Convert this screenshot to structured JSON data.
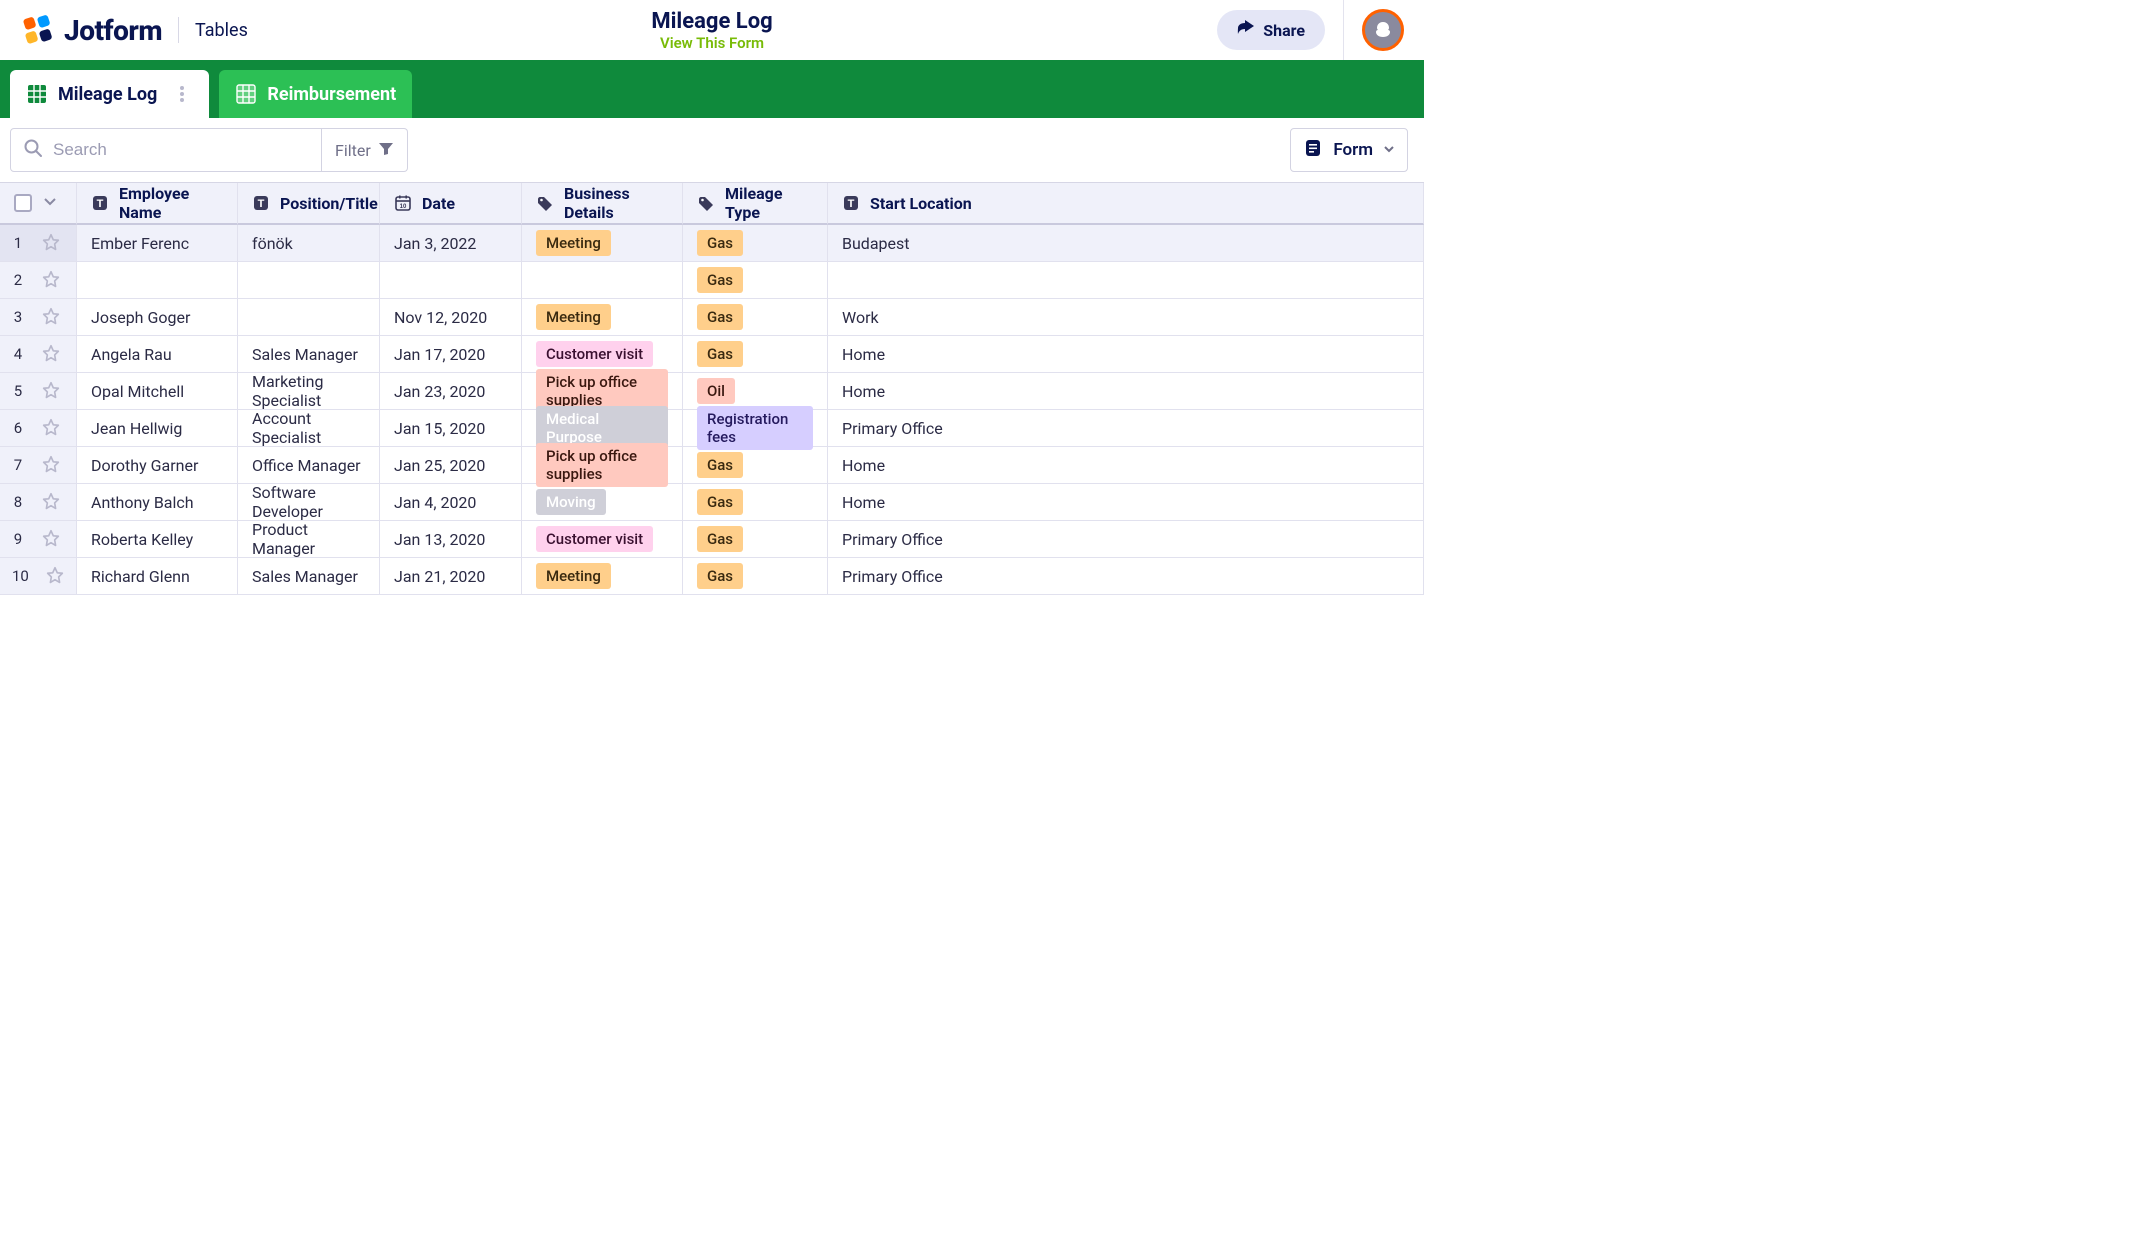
{
  "brand": {
    "name": "Jotform",
    "section": "Tables"
  },
  "title": {
    "main": "Mileage Log",
    "link": "View This Form"
  },
  "share": {
    "label": "Share"
  },
  "tabs": [
    {
      "label": "Mileage Log",
      "active": true
    },
    {
      "label": "Reimbursement",
      "active": false
    }
  ],
  "toolbar": {
    "search_placeholder": "Search",
    "filter_label": "Filter",
    "form_label": "Form"
  },
  "columns": [
    {
      "label": "Employee Name",
      "icon": "text"
    },
    {
      "label": "Position/Title",
      "icon": "text"
    },
    {
      "label": "Date",
      "icon": "date"
    },
    {
      "label": "Business Details",
      "icon": "tag"
    },
    {
      "label": "Mileage Type",
      "icon": "tag"
    },
    {
      "label": "Start Location",
      "icon": "text"
    }
  ],
  "tag_styles": {
    "Meeting": {
      "bg": "#ffcf8b",
      "fg": "#3a2a10"
    },
    "Gas": {
      "bg": "#ffcf8b",
      "fg": "#3a2a10"
    },
    "Customer visit": {
      "bg": "#ffd1ed",
      "fg": "#3a1030"
    },
    "Pick up office supplies": {
      "bg": "#ffc9bf",
      "fg": "#3a1810"
    },
    "Oil": {
      "bg": "#ffc9bf",
      "fg": "#3a1810"
    },
    "Medical Purpose": {
      "bg": "#cfcfd8",
      "fg": "#ffffff"
    },
    "Moving": {
      "bg": "#cfcfd8",
      "fg": "#ffffff"
    },
    "Registration fees": {
      "bg": "#d6ceff",
      "fg": "#251a5e"
    }
  },
  "rows": [
    {
      "n": "1",
      "selected": true,
      "employee": "Ember Ferenc",
      "position": "fönök",
      "date": "Jan 3, 2022",
      "business": "Meeting",
      "mileage": "Gas",
      "start": "Budapest"
    },
    {
      "n": "2",
      "selected": false,
      "employee": "",
      "position": "",
      "date": "",
      "business": "",
      "mileage": "Gas",
      "start": ""
    },
    {
      "n": "3",
      "selected": false,
      "employee": "Joseph Goger",
      "position": "",
      "date": "Nov 12, 2020",
      "business": "Meeting",
      "mileage": "Gas",
      "start": "Work"
    },
    {
      "n": "4",
      "selected": false,
      "employee": "Angela Rau",
      "position": "Sales Manager",
      "date": "Jan 17, 2020",
      "business": "Customer visit",
      "mileage": "Gas",
      "start": "Home"
    },
    {
      "n": "5",
      "selected": false,
      "employee": "Opal Mitchell",
      "position": "Marketing Specialist",
      "date": "Jan 23, 2020",
      "business": "Pick up office supplies",
      "mileage": "Oil",
      "start": "Home"
    },
    {
      "n": "6",
      "selected": false,
      "employee": "Jean Hellwig",
      "position": "Account Specialist",
      "date": "Jan 15, 2020",
      "business": "Medical Purpose",
      "mileage": "Registration fees",
      "start": "Primary Office"
    },
    {
      "n": "7",
      "selected": false,
      "employee": "Dorothy Garner",
      "position": "Office Manager",
      "date": "Jan 25, 2020",
      "business": "Pick up office supplies",
      "mileage": "Gas",
      "start": "Home"
    },
    {
      "n": "8",
      "selected": false,
      "employee": "Anthony Balch",
      "position": "Software Developer",
      "date": "Jan 4, 2020",
      "business": "Moving",
      "mileage": "Gas",
      "start": "Home"
    },
    {
      "n": "9",
      "selected": false,
      "employee": "Roberta Kelley",
      "position": "Product Manager",
      "date": "Jan 13, 2020",
      "business": "Customer visit",
      "mileage": "Gas",
      "start": "Primary Office"
    },
    {
      "n": "10",
      "selected": false,
      "employee": "Richard Glenn",
      "position": "Sales Manager",
      "date": "Jan 21, 2020",
      "business": "Meeting",
      "mileage": "Gas",
      "start": "Primary Office"
    }
  ]
}
